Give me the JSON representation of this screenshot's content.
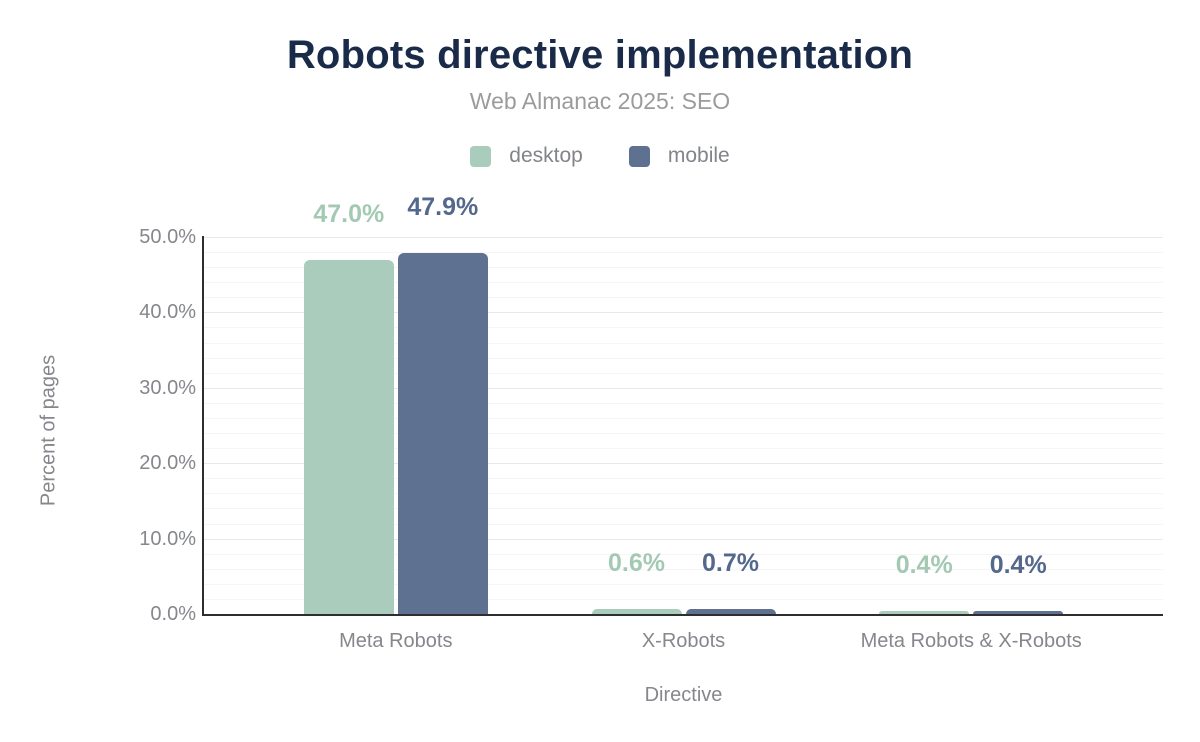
{
  "chart_data": {
    "type": "bar",
    "title": "Robots directive implementation",
    "subtitle": "Web Almanac 2025: SEO",
    "xlabel": "Directive",
    "ylabel": "Percent of pages",
    "categories": [
      "Meta Robots",
      "X-Robots",
      "Meta Robots & X-Robots"
    ],
    "series": [
      {
        "name": "desktop",
        "color": "#a9ccbc",
        "label_color": "#a3c9b3",
        "values": [
          47.0,
          0.6,
          0.4
        ],
        "labels": [
          "47.0%",
          "0.6%",
          "0.4%"
        ]
      },
      {
        "name": "mobile",
        "color": "#5e7191",
        "label_color": "#53688c",
        "values": [
          47.9,
          0.7,
          0.4
        ],
        "labels": [
          "47.9%",
          "0.7%",
          "0.4%"
        ]
      }
    ],
    "ylim": [
      0,
      50
    ],
    "yticks": [
      "0.0%",
      "10.0%",
      "20.0%",
      "30.0%",
      "40.0%",
      "50.0%"
    ],
    "grid": "on",
    "grid_major_step": 10,
    "grid_minor_step": 2,
    "legend_position": "top",
    "value_suffix": "%",
    "value_decimals": 1,
    "colors": {
      "title": "#1a2b49",
      "subtitle": "#9b9b9b",
      "axis_text": "#85878c",
      "axis_line": "#2e2e2e",
      "gridline_minor": "#f5f5f5",
      "gridline_major": "#e9e9e9",
      "background": "#ffffff"
    }
  }
}
